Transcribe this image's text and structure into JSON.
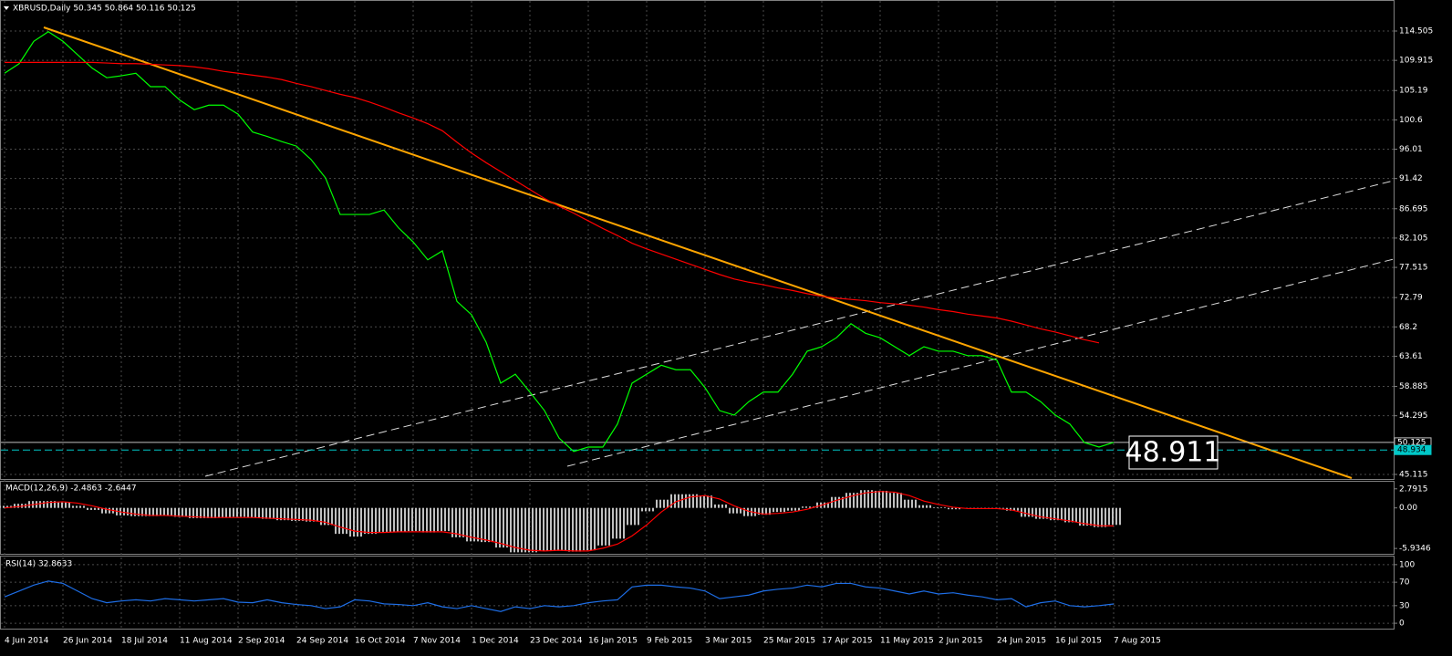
{
  "chart_data": [
    {
      "type": "line",
      "title": "XBRUSD,Daily  50.345 50.864 50.116 50.125",
      "categories": [
        "4 Jun 2014",
        null,
        null,
        null,
        "26 Jun 2014",
        null,
        null,
        null,
        "18 Jul 2014",
        null,
        null,
        null,
        "11 Aug 2014",
        null,
        null,
        null,
        "2 Sep 2014",
        null,
        null,
        null,
        "24 Sep 2014",
        null,
        null,
        null,
        "16 Oct 2014",
        null,
        null,
        null,
        "7 Nov 2014",
        null,
        null,
        null,
        "1 Dec 2014",
        null,
        null,
        null,
        "23 Dec 2014",
        null,
        null,
        null,
        "16 Jan 2015",
        null,
        null,
        null,
        "9 Feb 2015",
        null,
        null,
        null,
        "3 Mar 2015",
        null,
        null,
        null,
        "25 Mar 2015",
        null,
        null,
        null,
        "17 Apr 2015",
        null,
        null,
        null,
        "11 May 2015",
        null,
        null,
        null,
        "2 Jun 2015",
        null,
        null,
        null,
        "24 Jun 2015",
        null,
        null,
        null,
        "16 Jul 2015",
        null,
        null,
        null,
        "7 Aug 2015"
      ],
      "series": [
        {
          "color": "#00ff00",
          "values": [
            107.9,
            109.4,
            112.9,
            114.4,
            112.9,
            110.8,
            108.7,
            107.2,
            107.5,
            107.9,
            105.8,
            105.8,
            103.7,
            102.2,
            102.9,
            102.9,
            101.5,
            98.7,
            98.0,
            97.2,
            96.5,
            94.4,
            91.5,
            85.8,
            85.8,
            85.8,
            86.5,
            83.7,
            81.5,
            78.7,
            80.1,
            72.2,
            70.1,
            65.8,
            59.4,
            60.8,
            58.0,
            55.1,
            50.8,
            48.7,
            49.4,
            49.4,
            53.0,
            59.4,
            60.8,
            62.2,
            61.5,
            61.5,
            58.7,
            55.1,
            54.4,
            56.5,
            58.0,
            58.0,
            60.8,
            64.4,
            65.1,
            66.5,
            68.7,
            67.2,
            66.5,
            65.1,
            63.7,
            65.1,
            64.4,
            64.4,
            63.7,
            63.7,
            63.0,
            58.0,
            58.0,
            56.5,
            54.4,
            53.0,
            50.1,
            49.4,
            50.125
          ]
        },
        {
          "color": "#ff0000",
          "values": [
            109.6,
            109.6,
            109.6,
            109.6,
            109.6,
            109.6,
            109.6,
            109.5,
            109.4,
            109.4,
            109.3,
            109.2,
            109.1,
            108.9,
            108.6,
            108.2,
            107.9,
            107.6,
            107.3,
            106.9,
            106.3,
            105.8,
            105.2,
            104.6,
            104.1,
            103.4,
            102.6,
            101.7,
            100.9,
            100.0,
            98.9,
            97.1,
            95.4,
            93.9,
            92.5,
            91.1,
            89.7,
            88.3,
            87.1,
            86.0,
            84.8,
            83.6,
            82.5,
            81.3,
            80.4,
            79.6,
            78.8,
            78.0,
            77.2,
            76.4,
            75.7,
            75.2,
            74.8,
            74.3,
            73.9,
            73.4,
            73.0,
            72.7,
            72.5,
            72.3,
            72.0,
            71.8,
            71.6,
            71.3,
            70.9,
            70.6,
            70.2,
            69.9,
            69.6,
            69.1,
            68.5,
            67.9,
            67.4,
            66.8,
            66.2,
            65.7,
            null
          ]
        }
      ],
      "ylim": [
        44.54,
        118.79
      ],
      "yticks": [
        114.505,
        109.915,
        105.19,
        100.6,
        96.01,
        91.42,
        86.695,
        82.105,
        77.515,
        72.79,
        68.2,
        63.61,
        58.885,
        54.295,
        45.115
      ],
      "price_lines": [
        {
          "value": 50.125,
          "color": "#c0c0c0"
        },
        {
          "value": 48.934,
          "color": "#00c8c8"
        }
      ],
      "annotation": "48.911",
      "grid": true
    },
    {
      "type": "macd",
      "title": "MACD(12,26,9) -2.4863 -2.6447",
      "series": [
        {
          "type": "bar",
          "color": "#c0c0c0",
          "values": [
            0.3,
            0.6,
            1.0,
            1.0,
            0.8,
            0.3,
            -0.3,
            -0.8,
            -1.1,
            -1.2,
            -1.2,
            -1.1,
            -1.3,
            -1.5,
            -1.5,
            -1.4,
            -1.3,
            -1.4,
            -1.6,
            -1.8,
            -1.9,
            -2.0,
            -2.5,
            -3.8,
            -4.2,
            -3.8,
            -3.5,
            -3.5,
            -3.4,
            -3.6,
            -3.4,
            -4.3,
            -4.9,
            -5.0,
            -5.8,
            -6.5,
            -6.5,
            -6.3,
            -6.2,
            -6.4,
            -6.2,
            -5.5,
            -4.5,
            -2.5,
            -0.5,
            1.2,
            2.0,
            2.0,
            1.8,
            0.5,
            -0.8,
            -1.2,
            -1.0,
            -0.6,
            -0.4,
            0.2,
            0.8,
            1.6,
            2.2,
            2.6,
            2.5,
            2.2,
            1.2,
            0.4,
            0.1,
            -0.2,
            -0.1,
            0.0,
            -0.1,
            -0.4,
            -1.3,
            -1.6,
            -1.8,
            -2.1,
            -2.6,
            -2.8,
            -2.4863
          ]
        },
        {
          "type": "line",
          "color": "#ff0000",
          "values": [
            0.0,
            0.2,
            0.5,
            0.8,
            0.9,
            0.7,
            0.3,
            -0.2,
            -0.6,
            -0.9,
            -1.1,
            -1.1,
            -1.2,
            -1.3,
            -1.4,
            -1.4,
            -1.4,
            -1.4,
            -1.5,
            -1.6,
            -1.7,
            -1.8,
            -2.1,
            -2.8,
            -3.4,
            -3.6,
            -3.6,
            -3.5,
            -3.5,
            -3.5,
            -3.5,
            -3.8,
            -4.3,
            -4.7,
            -5.2,
            -5.8,
            -6.2,
            -6.3,
            -6.2,
            -6.3,
            -6.3,
            -5.9,
            -5.3,
            -4.1,
            -2.5,
            -0.6,
            0.9,
            1.6,
            1.8,
            1.3,
            0.3,
            -0.5,
            -0.9,
            -0.8,
            -0.6,
            -0.2,
            0.4,
            1.1,
            1.7,
            2.2,
            2.4,
            2.3,
            1.8,
            1.0,
            0.5,
            0.1,
            -0.1,
            -0.1,
            -0.1,
            -0.3,
            -0.8,
            -1.3,
            -1.6,
            -1.9,
            -2.3,
            -2.6,
            -2.6447
          ]
        }
      ],
      "ylim": [
        -6.72,
        3.83
      ],
      "yticks": [
        2.7915,
        {
          "value": 0,
          "label": "0.00"
        },
        -5.9346
      ]
    },
    {
      "type": "line",
      "title": "RSI(14) 32.8633",
      "series": [
        {
          "color": "#1e6ee6",
          "values": [
            45,
            55,
            65,
            72,
            68,
            55,
            42,
            35,
            38,
            40,
            38,
            42,
            40,
            38,
            40,
            42,
            36,
            35,
            40,
            35,
            32,
            30,
            25,
            28,
            40,
            38,
            33,
            32,
            30,
            35,
            28,
            25,
            30,
            25,
            20,
            28,
            25,
            30,
            28,
            30,
            35,
            38,
            40,
            62,
            65,
            65,
            62,
            60,
            55,
            42,
            45,
            48,
            55,
            58,
            60,
            65,
            62,
            68,
            68,
            62,
            60,
            55,
            50,
            55,
            50,
            52,
            48,
            45,
            40,
            42,
            28,
            35,
            38,
            30,
            28,
            30,
            32.8633
          ]
        }
      ],
      "ylim": [
        -9.2,
        113.8
      ],
      "yticks": [
        100,
        70,
        30,
        0
      ],
      "grid": true
    }
  ]
}
